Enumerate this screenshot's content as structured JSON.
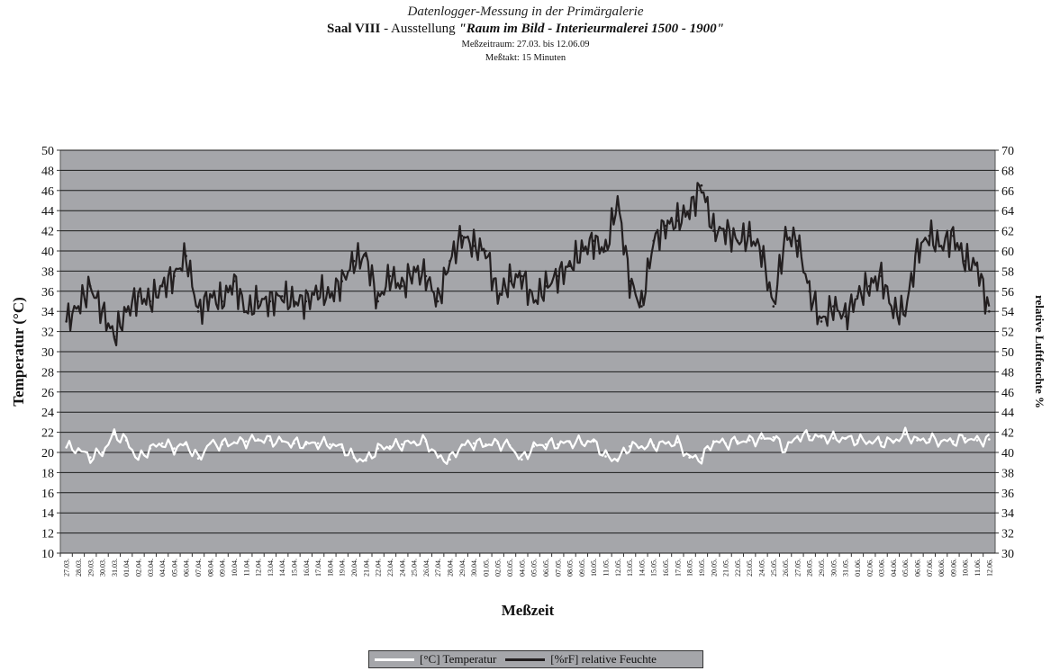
{
  "header": {
    "line1": "Datenlogger-Messung in der Primärgalerie",
    "room": "Saal VIII",
    "dash": " - Ausstellung ",
    "exhibition": "\"Raum im Bild - Interieurmalerei 1500 - 1900\"",
    "period": "Meßzeitraum: 27.03. bis 12.06.09",
    "interval": "Meßtakt: 15 Minuten"
  },
  "colors": {
    "plot_bg": "#a5a6aa",
    "grid": "#1a1a1a",
    "temperature": "#ffffff",
    "humidity": "#231f20"
  },
  "chart_data": {
    "type": "line",
    "xlabel": "Meßzeit",
    "ylabel_left": "Temperatur (°C)",
    "ylabel_right": "relative Luftfeuchte %",
    "ylim_left": [
      10,
      50
    ],
    "ylim_right": [
      30,
      70
    ],
    "yticks_left": [
      10,
      12,
      14,
      16,
      18,
      20,
      22,
      24,
      26,
      28,
      30,
      32,
      34,
      36,
      38,
      40,
      42,
      44,
      46,
      48,
      50
    ],
    "yticks_right": [
      30,
      32,
      34,
      36,
      38,
      40,
      42,
      44,
      46,
      48,
      50,
      52,
      54,
      56,
      58,
      60,
      62,
      64,
      66,
      68,
      70
    ],
    "grid": true,
    "legend_position": "bottom-center",
    "categories": [
      "27.03.",
      "28.03.",
      "29.03.",
      "30.03.",
      "31.03.",
      "01.04.",
      "02.04.",
      "03.04.",
      "04.04.",
      "05.04.",
      "06.04.",
      "07.04.",
      "08.04.",
      "09.04.",
      "10.04.",
      "11.04.",
      "12.04.",
      "13.04.",
      "14.04.",
      "15.04.",
      "16.04.",
      "17.04.",
      "18.04.",
      "19.04.",
      "20.04.",
      "21.04.",
      "22.04.",
      "23.04.",
      "24.04.",
      "25.04.",
      "26.04.",
      "27.04.",
      "28.04.",
      "29.04.",
      "30.04.",
      "01.05.",
      "02.05.",
      "03.05.",
      "04.05.",
      "05.05.",
      "06.05.",
      "07.05.",
      "08.05.",
      "09.05.",
      "10.05.",
      "11.05.",
      "12.05.",
      "13.05.",
      "14.05.",
      "15.05.",
      "16.05.",
      "17.05.",
      "18.05.",
      "19.05.",
      "20.05.",
      "21.05.",
      "22.05.",
      "23.05.",
      "24.05.",
      "25.05.",
      "26.05.",
      "27.05.",
      "28.05.",
      "29.05.",
      "30.05.",
      "31.05.",
      "01.06.",
      "02.06.",
      "03.06.",
      "04.06.",
      "05.06.",
      "06.06.",
      "07.06.",
      "08.06.",
      "09.06.",
      "10.06.",
      "11.06.",
      "12.06."
    ],
    "series": [
      {
        "name": "[°C] Temperatur",
        "axis": "left",
        "values": [
          20.5,
          20.3,
          19.5,
          20.0,
          21.8,
          21.2,
          19.3,
          20.4,
          20.9,
          20.4,
          20.8,
          19.4,
          20.9,
          20.8,
          21.0,
          21.1,
          21.3,
          21.2,
          21.1,
          20.9,
          20.8,
          20.9,
          20.8,
          20.5,
          19.5,
          19.2,
          20.4,
          20.6,
          20.8,
          21.0,
          21.1,
          19.5,
          19.3,
          20.7,
          20.9,
          20.8,
          20.9,
          20.7,
          19.3,
          20.6,
          20.8,
          20.8,
          21.0,
          21.0,
          21.1,
          19.6,
          19.3,
          20.6,
          20.6,
          20.7,
          20.9,
          21.0,
          19.5,
          19.4,
          21.1,
          20.9,
          21.1,
          21.2,
          21.4,
          21.5,
          20.3,
          21.6,
          21.6,
          21.5,
          21.4,
          21.4,
          21.2,
          21.1,
          21.0,
          21.1,
          21.8,
          21.2,
          21.3,
          21.1,
          21.1,
          21.4,
          21.2,
          21.3
        ]
      },
      {
        "name": "[%rF] relative Feuchte",
        "axis": "right",
        "values": [
          53.0,
          54.5,
          56.5,
          54.0,
          51.5,
          54.0,
          55.5,
          55.0,
          56.5,
          57.5,
          59.5,
          54.0,
          55.5,
          55.0,
          57.0,
          54.0,
          55.0,
          55.0,
          55.5,
          55.0,
          55.0,
          56.0,
          55.5,
          57.0,
          59.0,
          59.5,
          55.0,
          57.5,
          56.5,
          58.0,
          57.5,
          55.0,
          59.0,
          61.5,
          60.5,
          60.0,
          55.5,
          57.0,
          57.5,
          55.0,
          56.5,
          57.5,
          58.5,
          60.0,
          61.0,
          60.0,
          65.0,
          57.0,
          54.5,
          61.0,
          62.5,
          63.0,
          64.0,
          66.5,
          62.0,
          62.0,
          61.0,
          61.5,
          60.0,
          54.5,
          61.5,
          61.0,
          56.0,
          53.0,
          54.5,
          53.5,
          55.5,
          56.5,
          57.5,
          54.0,
          54.0,
          60.0,
          61.5,
          60.5,
          61.5,
          59.0,
          58.5,
          54.0
        ]
      }
    ]
  }
}
